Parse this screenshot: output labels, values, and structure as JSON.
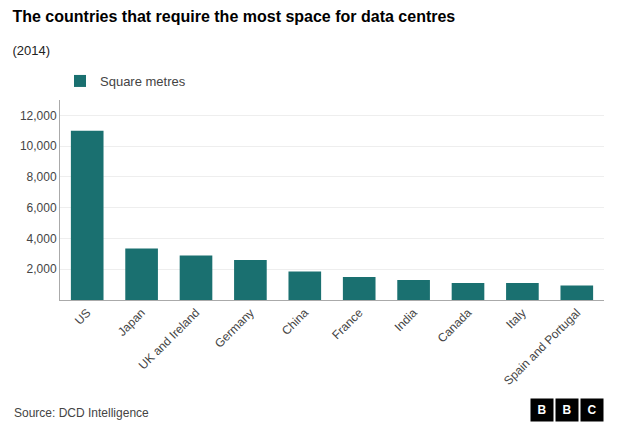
{
  "chart_data": {
    "type": "bar",
    "title": "The countries that require the most space for data centres",
    "subtitle": "(2014)",
    "categories": [
      "US",
      "Japan",
      "UK and Ireland",
      "Germany",
      "China",
      "France",
      "India",
      "Canada",
      "Italy",
      "Spain and Portugal"
    ],
    "series": [
      {
        "name": "Square metres",
        "color": "#1a7070",
        "values": [
          11000,
          3350,
          2900,
          2600,
          1850,
          1500,
          1300,
          1100,
          1100,
          950
        ]
      }
    ],
    "ylim": [
      0,
      13000
    ],
    "yticks": [
      {
        "value": 2000,
        "label": "2,000"
      },
      {
        "value": 4000,
        "label": "4,000"
      },
      {
        "value": 6000,
        "label": "6,000"
      },
      {
        "value": 8000,
        "label": "8,000"
      },
      {
        "value": 10000,
        "label": "10,000"
      },
      {
        "value": 12000,
        "label": "12,000"
      }
    ],
    "grid": true,
    "legend": "upper left",
    "annotations": [
      "Source: DCD Intelligence",
      "BBC"
    ]
  }
}
